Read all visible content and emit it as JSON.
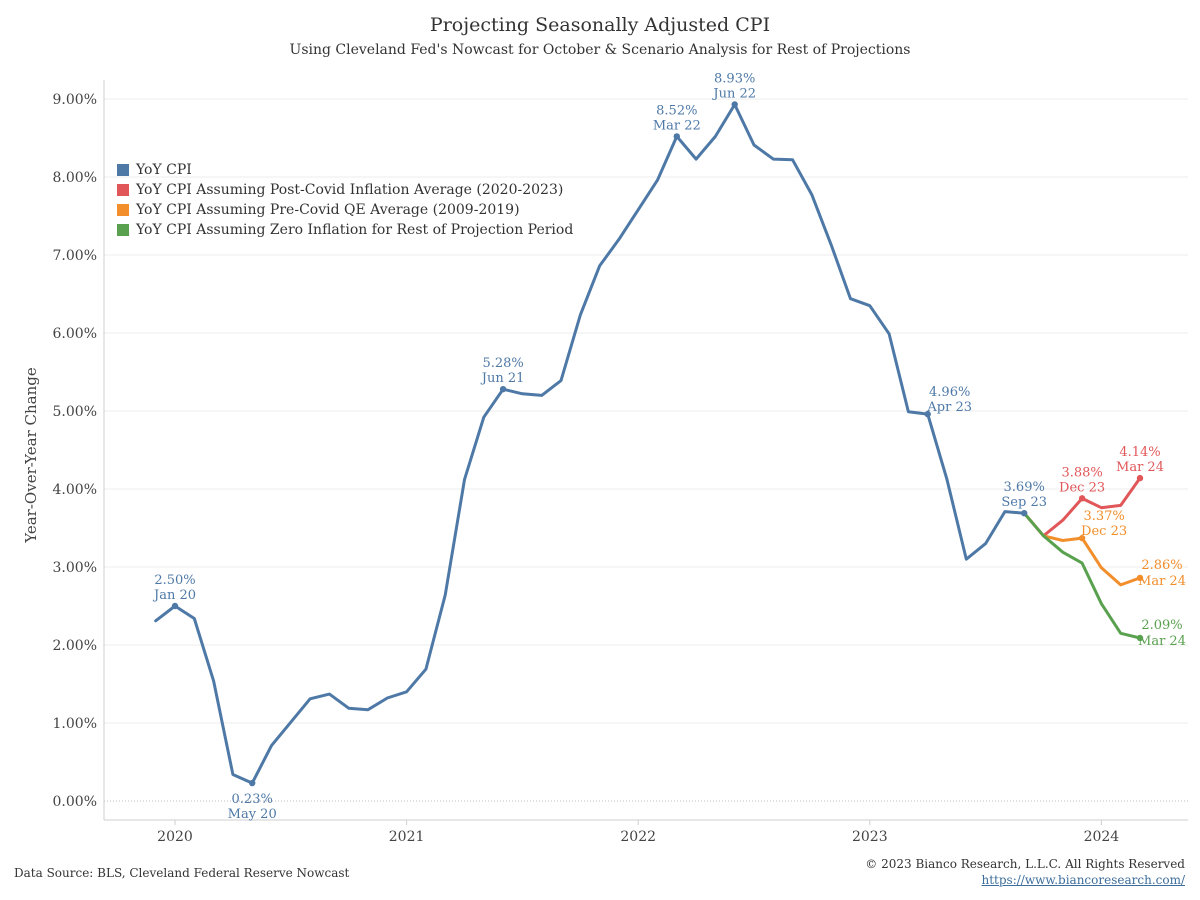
{
  "title": "Projecting Seasonally Adjusted CPI",
  "subtitle": "Using Cleveland Fed's Nowcast for October & Scenario Analysis for Rest of Projections",
  "footer": {
    "source": "Data Source: BLS, Cleveland Federal Reserve Nowcast",
    "copyright": "© 2023 Bianco Research, L.L.C. All Rights Reserved",
    "url": "https://www.biancoresearch.com/"
  },
  "chart_data": {
    "type": "line",
    "ylabel": "Year-Over-Year Change",
    "ylim": [
      0,
      9.0
    ],
    "yticks": [
      "0.00%",
      "1.00%",
      "2.00%",
      "3.00%",
      "4.00%",
      "5.00%",
      "6.00%",
      "7.00%",
      "8.00%",
      "9.00%"
    ],
    "xticks": [
      "2020",
      "2021",
      "2022",
      "2023",
      "2024"
    ],
    "legend_position": "upper-left",
    "series": [
      {
        "name": "YoY CPI",
        "color": "#4e79a7",
        "x": [
          "2019-12",
          "2020-01",
          "2020-02",
          "2020-03",
          "2020-04",
          "2020-05",
          "2020-06",
          "2020-07",
          "2020-08",
          "2020-09",
          "2020-10",
          "2020-11",
          "2020-12",
          "2021-01",
          "2021-02",
          "2021-03",
          "2021-04",
          "2021-05",
          "2021-06",
          "2021-07",
          "2021-08",
          "2021-09",
          "2021-10",
          "2021-11",
          "2021-12",
          "2022-01",
          "2022-02",
          "2022-03",
          "2022-04",
          "2022-05",
          "2022-06",
          "2022-07",
          "2022-08",
          "2022-09",
          "2022-10",
          "2022-11",
          "2022-12",
          "2023-01",
          "2023-02",
          "2023-03",
          "2023-04",
          "2023-05",
          "2023-06",
          "2023-07",
          "2023-08",
          "2023-09"
        ],
        "values": [
          2.31,
          2.5,
          2.34,
          1.54,
          0.34,
          0.23,
          0.71,
          1.01,
          1.31,
          1.37,
          1.19,
          1.17,
          1.32,
          1.4,
          1.69,
          2.64,
          4.12,
          4.92,
          5.28,
          5.22,
          5.2,
          5.39,
          6.23,
          6.86,
          7.2,
          7.58,
          7.96,
          8.52,
          8.23,
          8.52,
          8.93,
          8.41,
          8.23,
          8.22,
          7.77,
          7.13,
          6.44,
          6.35,
          5.99,
          4.99,
          4.96,
          4.12,
          3.1,
          3.3,
          3.71,
          3.69
        ]
      },
      {
        "name": "YoY CPI Assuming Post-Covid Inflation Average (2020-2023)",
        "color": "#e15759",
        "x": [
          "2023-09",
          "2023-10",
          "2023-11",
          "2023-12",
          "2024-01",
          "2024-02",
          "2024-03"
        ],
        "values": [
          3.69,
          3.4,
          3.6,
          3.88,
          3.76,
          3.79,
          4.14
        ]
      },
      {
        "name": "YoY CPI Assuming Pre-Covid QE Average (2009-2019)",
        "color": "#f28e2b",
        "x": [
          "2023-09",
          "2023-10",
          "2023-11",
          "2023-12",
          "2024-01",
          "2024-02",
          "2024-03"
        ],
        "values": [
          3.69,
          3.4,
          3.34,
          3.37,
          2.99,
          2.77,
          2.86
        ]
      },
      {
        "name": "YoY CPI Assuming Zero Inflation for Rest of Projection Period",
        "color": "#59a14f",
        "x": [
          "2023-09",
          "2023-10",
          "2023-11",
          "2023-12",
          "2024-01",
          "2024-02",
          "2024-03"
        ],
        "values": [
          3.69,
          3.4,
          3.19,
          3.05,
          2.53,
          2.15,
          2.09
        ]
      }
    ],
    "annotations": [
      {
        "series": 0,
        "x": "2020-01",
        "value_label": "2.50%",
        "date_label": "Jan 20",
        "pos": "above"
      },
      {
        "series": 0,
        "x": "2020-05",
        "value_label": "0.23%",
        "date_label": "May 20",
        "pos": "below"
      },
      {
        "series": 0,
        "x": "2021-06",
        "value_label": "5.28%",
        "date_label": "Jun 21",
        "pos": "above"
      },
      {
        "series": 0,
        "x": "2022-03",
        "value_label": "8.52%",
        "date_label": "Mar 22",
        "pos": "above"
      },
      {
        "series": 0,
        "x": "2022-06",
        "value_label": "8.93%",
        "date_label": "Jun 22",
        "pos": "above"
      },
      {
        "series": 0,
        "x": "2023-04",
        "value_label": "4.96%",
        "date_label": "Apr 23",
        "pos": "above-right"
      },
      {
        "series": 0,
        "x": "2023-09",
        "value_label": "3.69%",
        "date_label": "Sep 23",
        "pos": "above"
      },
      {
        "series": 1,
        "x": "2023-12",
        "value_label": "3.88%",
        "date_label": "Dec 23",
        "pos": "above"
      },
      {
        "series": 1,
        "x": "2024-03",
        "value_label": "4.14%",
        "date_label": "Mar 24",
        "pos": "above"
      },
      {
        "series": 2,
        "x": "2023-12",
        "value_label": "3.37%",
        "date_label": "Dec 23",
        "pos": "above-right"
      },
      {
        "series": 2,
        "x": "2024-03",
        "value_label": "2.86%",
        "date_label": "Mar 24",
        "pos": "right"
      },
      {
        "series": 3,
        "x": "2024-03",
        "value_label": "2.09%",
        "date_label": "Mar 24",
        "pos": "right"
      }
    ]
  }
}
